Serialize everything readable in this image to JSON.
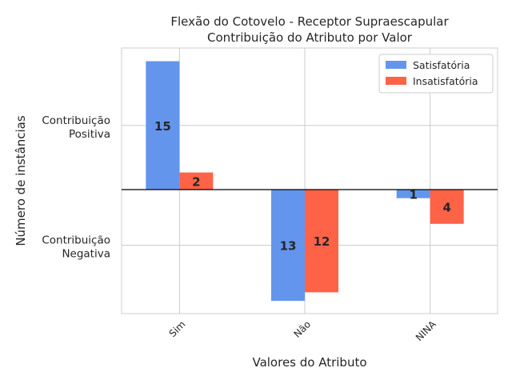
{
  "chart_data": {
    "type": "bar",
    "title_lines": [
      "Flexão do Cotovelo - Receptor Supraescapular",
      "Contribuição do Atributo por Valor"
    ],
    "xlabel": "Valores do Atributo",
    "ylabel": "Número de instâncias",
    "categories": [
      "Sim",
      "Não",
      "NINA"
    ],
    "y_ticks": [
      {
        "value": 7.5,
        "lines": [
          "Contribuição",
          "Positiva"
        ]
      },
      {
        "value": -6.5,
        "lines": [
          "Contribuição",
          "Negativa"
        ]
      }
    ],
    "series": [
      {
        "name": "Satisfatória",
        "color": "#6495ED",
        "values": [
          15,
          -13,
          -1
        ]
      },
      {
        "name": "Insatisfatória",
        "color": "#FF6347",
        "values": [
          2,
          -12,
          -4
        ]
      }
    ],
    "data_labels": [
      [
        "15",
        "13",
        "1"
      ],
      [
        "2",
        "12",
        "4"
      ]
    ],
    "ylim": [
      -14.5,
      16.5
    ],
    "grid": true,
    "legend_position": "top-right",
    "zero_line": true
  }
}
